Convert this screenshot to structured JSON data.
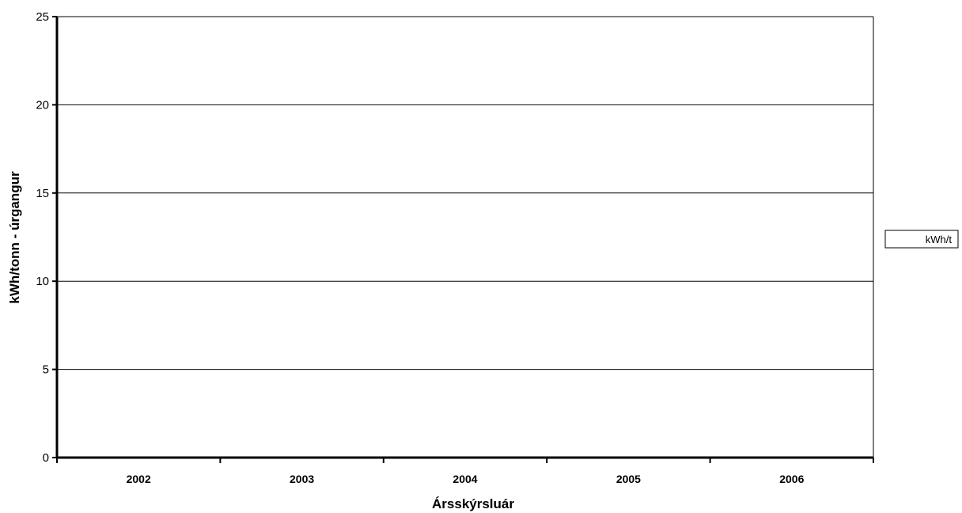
{
  "chart_data": {
    "type": "bar",
    "title": "",
    "xlabel": "Ársskýrsluár",
    "ylabel": "kWh/tonn - úrgangur",
    "categories": [
      "2002",
      "2003",
      "2004",
      "2005",
      "2006"
    ],
    "series": [
      {
        "name": "kWh/t",
        "values": [
          null,
          null,
          null,
          null,
          null
        ]
      }
    ],
    "ylim": [
      0,
      25
    ],
    "yticks": [
      "0",
      "5",
      "10",
      "15",
      "20",
      "25"
    ],
    "grid": true,
    "legend": "right"
  },
  "colors": {
    "axis": "#000000",
    "gridline": "#000000",
    "background": "#ffffff"
  }
}
